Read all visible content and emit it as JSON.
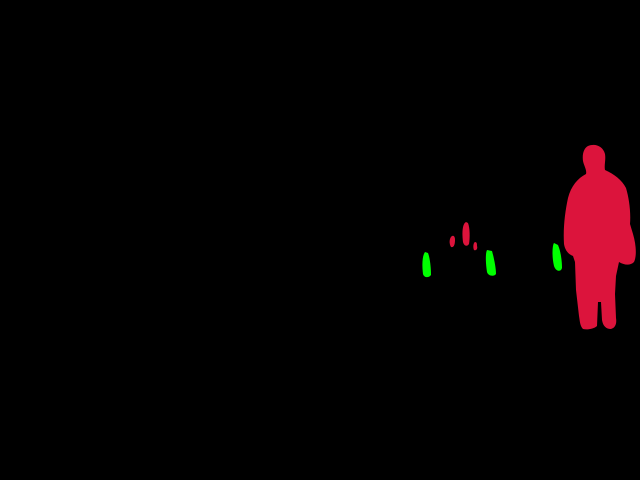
{
  "colors": {
    "background": "#000000",
    "person": "#DC143C",
    "object": "#00FF00"
  },
  "segments": [
    {
      "class_color": "person",
      "icon": "person-silhouette"
    },
    {
      "class_color": "person",
      "icon": "person-silhouette"
    },
    {
      "class_color": "person",
      "icon": "person-silhouette"
    },
    {
      "class_color": "person",
      "icon": "person-silhouette"
    },
    {
      "class_color": "object",
      "icon": "post-marker"
    },
    {
      "class_color": "object",
      "icon": "post-marker"
    },
    {
      "class_color": "object",
      "icon": "post-marker"
    }
  ]
}
